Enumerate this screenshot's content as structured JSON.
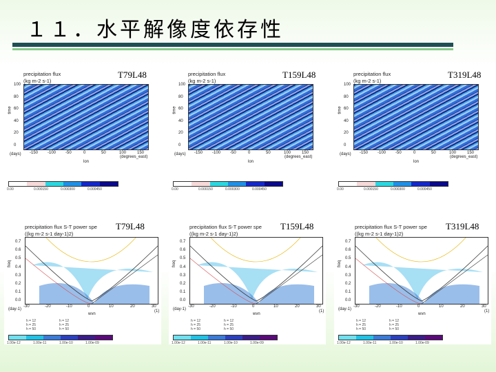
{
  "slide": {
    "title": "１１．水平解像度依存性"
  },
  "top_panels": [
    {
      "res": "T79L48",
      "title": "precipitation flux",
      "units": "(kg m-2 s-1)",
      "ylabel": "time",
      "xlabel": "lon",
      "xticks": [
        "-150",
        "-100",
        "-50",
        "0",
        "50",
        "100",
        "150"
      ],
      "yticks": [
        "100",
        "80",
        "60",
        "40",
        "20",
        "0"
      ],
      "xunit": "(degrees_east)",
      "yunit": "(days)",
      "cbar_labels": [
        "0.00",
        "0.000150",
        "0.000300",
        "0.000450"
      ]
    },
    {
      "res": "T159L48",
      "title": "precipitation flux",
      "units": "(kg m-2 s-1)",
      "ylabel": "time",
      "xlabel": "lon",
      "xticks": [
        "-150",
        "-100",
        "-50",
        "0",
        "50",
        "100",
        "150"
      ],
      "yticks": [
        "100",
        "80",
        "60",
        "40",
        "20",
        "0"
      ],
      "xunit": "(degrees_east)",
      "yunit": "(days)",
      "cbar_labels": [
        "0.00",
        "0.000150",
        "0.000300",
        "0.000450"
      ]
    },
    {
      "res": "T319L48",
      "title": "precipitation flux",
      "units": "(kg m-2 s-1)",
      "ylabel": "time",
      "xlabel": "lon",
      "xticks": [
        "-150",
        "-100",
        "-50",
        "0",
        "50",
        "100",
        "150"
      ],
      "yticks": [
        "100",
        "80",
        "60",
        "40",
        "20",
        "0"
      ],
      "xunit": "(degrees_east)",
      "yunit": "(days)",
      "cbar_labels": [
        "0.00",
        "0.000150",
        "0.000300",
        "0.000450"
      ]
    }
  ],
  "bottom_panels": [
    {
      "res": "T79L48",
      "title": "precipitation flux S-T power spe",
      "units": "((kg m-2 s-1 day-1)2)",
      "ylabel": "freq",
      "xlabel": "wvn",
      "xticks": [
        "-30",
        "-20",
        "-10",
        "0",
        "10",
        "20",
        "30"
      ],
      "yticks": [
        "0.7",
        "0.6",
        "0.5",
        "0.4",
        "0.3",
        "0.2",
        "0.1",
        "0.0"
      ],
      "yunit": "(day-1)",
      "xunit": "(1)",
      "legend": [
        "h = 12",
        "h = 25",
        "h = 50",
        "h = 12",
        "h = 25",
        "h = 50"
      ],
      "cbar_labels": [
        "1.00e-12",
        "1.00e-11",
        "1.00e-10",
        "1.00e-09"
      ]
    },
    {
      "res": "T159L48",
      "title": "precipitation flux S-T power spe",
      "units": "((kg m-2 s-1 day-1)2)",
      "ylabel": "freq",
      "xlabel": "wvn",
      "xticks": [
        "-30",
        "-20",
        "-10",
        "0",
        "10",
        "20",
        "30"
      ],
      "yticks": [
        "0.7",
        "0.6",
        "0.5",
        "0.4",
        "0.3",
        "0.2",
        "0.1",
        "0.0"
      ],
      "yunit": "(day-1)",
      "xunit": "(1)",
      "legend": [
        "h = 12",
        "h = 25",
        "h = 50",
        "h = 12",
        "h = 25",
        "h = 50"
      ],
      "cbar_labels": [
        "1.00e-12",
        "1.00e-11",
        "1.00e-10",
        "1.00e-09"
      ]
    },
    {
      "res": "T319L48",
      "title": "precipitation flux S-T power spe",
      "units": "((kg m-2 s-1 day-1)2)",
      "ylabel": "freq",
      "xlabel": "wvn",
      "xticks": [
        "-30",
        "-20",
        "-10",
        "0",
        "10",
        "20",
        "30"
      ],
      "yticks": [
        "0.7",
        "0.6",
        "0.5",
        "0.4",
        "0.3",
        "0.2",
        "0.1",
        "0.0"
      ],
      "yunit": "(day-1)",
      "xunit": "(1)",
      "legend": [
        "h = 12",
        "h = 25",
        "h = 50",
        "h = 12",
        "h = 25",
        "h = 50"
      ],
      "cbar_labels": [
        "1.00e-12",
        "1.00e-11",
        "1.00e-10",
        "1.00e-09"
      ]
    }
  ],
  "colors": {
    "hov_cbar": [
      "#ffffff",
      "#f7d9d9",
      "#2bd7e0",
      "#1e90e6",
      "#1428c8",
      "#0a0a8a"
    ],
    "st_cbar": [
      "#6ee0ef",
      "#1ec2e6",
      "#3a7ad8",
      "#2a3fc0",
      "#3a1c8a",
      "#5a0a7a"
    ]
  }
}
